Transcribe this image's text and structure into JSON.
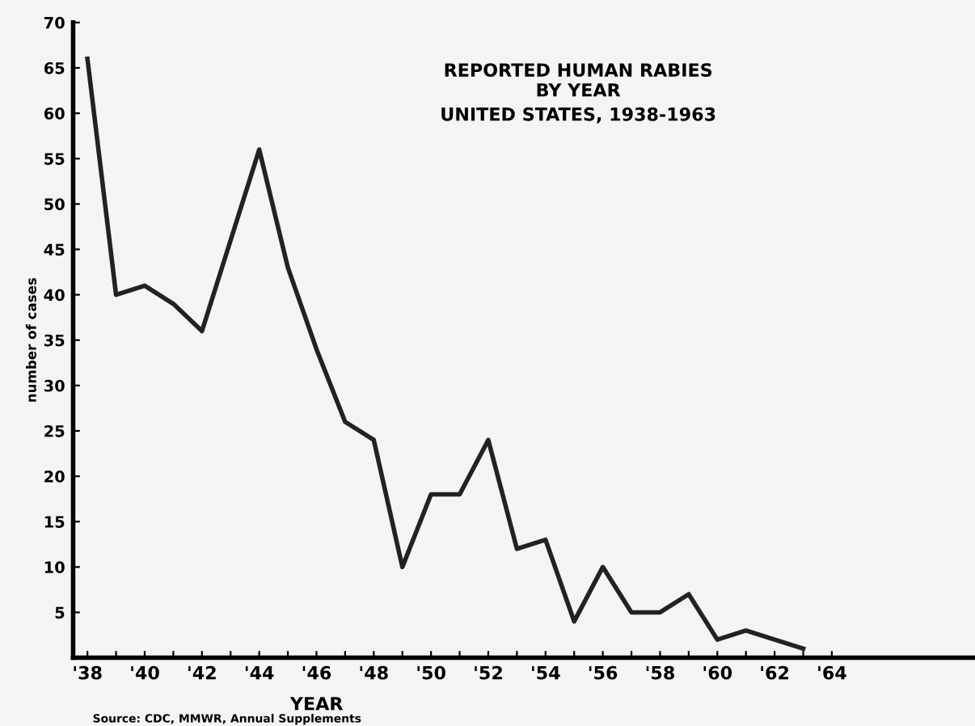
{
  "chart_data": {
    "type": "line",
    "title": "REPORTED HUMAN RABIES",
    "subtitle": "BY YEAR\nUNITED STATES, 1938-1963",
    "xlabel": "YEAR",
    "ylabel": "number of cases",
    "annotations": [
      "Source: CDC, MMWR, Annual Supplements"
    ],
    "x": [
      1938,
      1939,
      1940,
      1941,
      1942,
      1943,
      1944,
      1945,
      1946,
      1947,
      1948,
      1949,
      1950,
      1951,
      1952,
      1953,
      1954,
      1955,
      1956,
      1957,
      1958,
      1959,
      1960,
      1961,
      1962,
      1963
    ],
    "series": [
      {
        "color": "#222222",
        "values": [
          66,
          40,
          41,
          39,
          36,
          46,
          56,
          43,
          34,
          26,
          24,
          10,
          18,
          18,
          24,
          12,
          13,
          4,
          10,
          5,
          5,
          7,
          2,
          3,
          2,
          1
        ]
      }
    ],
    "xlim": [
      1937.5,
      1969
    ],
    "ylim": [
      0,
      70
    ],
    "xticks": [
      {
        "value": 1938,
        "label": "'38"
      },
      {
        "value": 1939,
        "label": null
      },
      {
        "value": 1940,
        "label": "'40"
      },
      {
        "value": 1941,
        "label": null
      },
      {
        "value": 1942,
        "label": "'42"
      },
      {
        "value": 1943,
        "label": null
      },
      {
        "value": 1944,
        "label": "'44"
      },
      {
        "value": 1945,
        "label": null
      },
      {
        "value": 1946,
        "label": "'46"
      },
      {
        "value": 1947,
        "label": null
      },
      {
        "value": 1948,
        "label": "'48"
      },
      {
        "value": 1949,
        "label": null
      },
      {
        "value": 1950,
        "label": "'50"
      },
      {
        "value": 1951,
        "label": null
      },
      {
        "value": 1952,
        "label": "'52"
      },
      {
        "value": 1953,
        "label": null
      },
      {
        "value": 1954,
        "label": "'54"
      },
      {
        "value": 1955,
        "label": null
      },
      {
        "value": 1956,
        "label": "'56"
      },
      {
        "value": 1957,
        "label": null
      },
      {
        "value": 1958,
        "label": "'58"
      },
      {
        "value": 1959,
        "label": null
      },
      {
        "value": 1960,
        "label": "'60"
      },
      {
        "value": 1961,
        "label": null
      },
      {
        "value": 1962,
        "label": "'62"
      },
      {
        "value": 1963,
        "label": null
      },
      {
        "value": 1964,
        "label": "'64"
      }
    ],
    "yticks": [
      5,
      10,
      15,
      20,
      25,
      30,
      35,
      40,
      45,
      50,
      55,
      60,
      65,
      70
    ],
    "grid": false,
    "legend": false,
    "marker": "none",
    "line_style": "solid"
  }
}
